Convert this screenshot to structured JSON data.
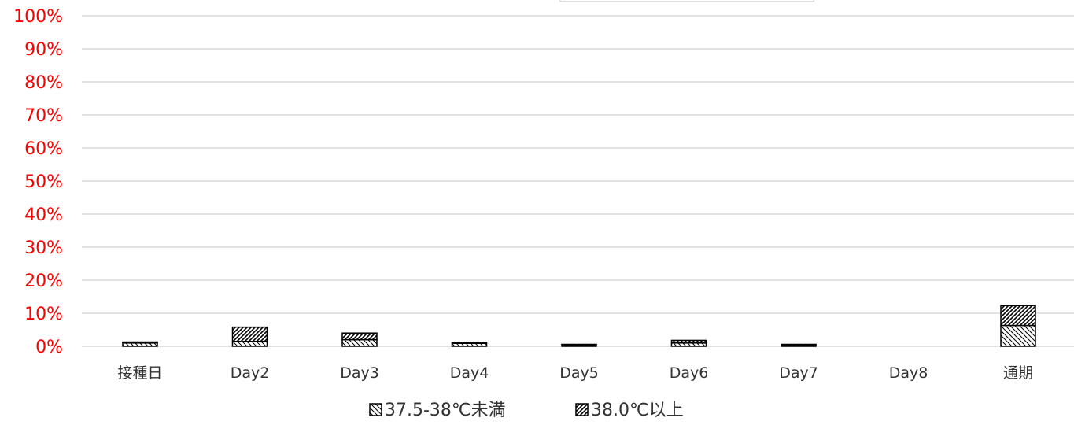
{
  "chart_data": {
    "type": "bar",
    "stacked": true,
    "categories": [
      "接種日",
      "Day2",
      "Day3",
      "Day4",
      "Day5",
      "Day6",
      "Day7",
      "Day8",
      "通期"
    ],
    "series": [
      {
        "name": "37.5-38℃未満",
        "pattern": "backslash-hatch",
        "values": [
          1.0,
          1.5,
          2.0,
          0.9,
          0.4,
          1.0,
          0.4,
          0.0,
          6.3
        ]
      },
      {
        "name": "38.0℃以上",
        "pattern": "slash-hatch",
        "values": [
          0.3,
          4.3,
          2.0,
          0.3,
          0.2,
          0.8,
          0.2,
          0.0,
          6.0
        ]
      }
    ],
    "y_ticks": [
      "0%",
      "10%",
      "20%",
      "30%",
      "40%",
      "50%",
      "60%",
      "70%",
      "80%",
      "90%",
      "100%"
    ],
    "ylim": [
      0,
      100
    ],
    "y_unit": "%",
    "grid": true,
    "legend_position": "bottom-center",
    "colors": {
      "y_tick_color": "#ff0000",
      "bar_stroke": "#000000",
      "gridline": "#d9d9d9"
    }
  }
}
